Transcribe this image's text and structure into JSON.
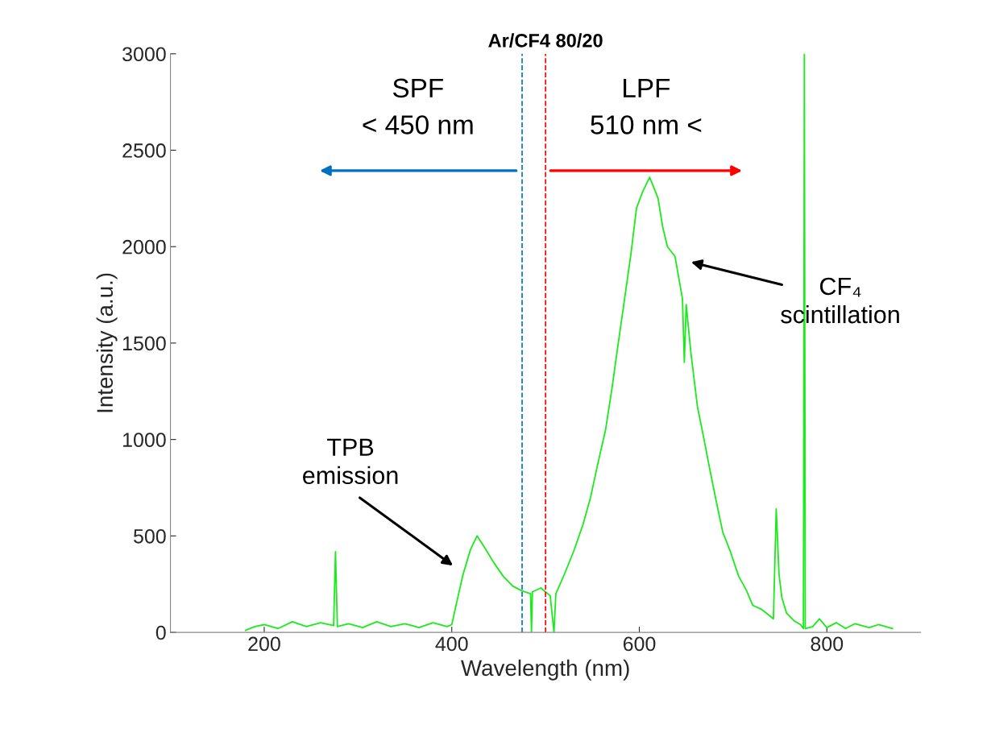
{
  "chart_data": {
    "type": "line",
    "title": "Ar/CF4 80/20",
    "xlabel": "Wavelength (nm)",
    "ylabel": "Intensity (a.u.)",
    "xlim": [
      100,
      900
    ],
    "xticks": [
      200,
      400,
      600,
      800
    ],
    "ylim": [
      0,
      3000
    ],
    "yticks": [
      0,
      500,
      1000,
      1500,
      2000,
      2500,
      3000
    ],
    "grid": false,
    "legend": false,
    "series": [
      {
        "color": "#1aeb1a",
        "x": [
          180,
          190,
          200,
          215,
          230,
          245,
          260,
          274,
          276,
          278,
          290,
          305,
          320,
          335,
          350,
          365,
          380,
          395,
          400,
          405,
          412,
          420,
          427,
          435,
          445,
          455,
          465,
          475,
          484,
          485,
          486,
          495,
          505,
          509,
          511,
          520,
          530,
          540,
          548,
          556,
          564,
          571,
          577,
          584,
          591,
          597,
          604,
          611,
          616,
          620,
          625,
          630,
          638,
          646,
          648,
          650,
          655,
          662,
          669,
          675,
          682,
          689,
          697,
          706,
          714,
          721,
          730,
          738,
          743,
          746,
          749,
          752,
          757,
          765,
          772,
          775,
          776,
          777,
          785,
          792,
          800,
          810,
          820,
          830,
          845,
          855,
          870
        ],
        "values": [
          10,
          30,
          40,
          20,
          55,
          30,
          50,
          35,
          418,
          30,
          45,
          25,
          55,
          30,
          45,
          25,
          50,
          30,
          40,
          150,
          300,
          430,
          500,
          440,
          360,
          290,
          240,
          215,
          200,
          0,
          210,
          230,
          190,
          0,
          200,
          300,
          420,
          560,
          700,
          880,
          1050,
          1270,
          1480,
          1720,
          1960,
          2200,
          2290,
          2360,
          2300,
          2250,
          2100,
          2000,
          1950,
          1730,
          1400,
          1700,
          1450,
          1170,
          1000,
          850,
          680,
          520,
          420,
          290,
          220,
          140,
          120,
          90,
          70,
          640,
          300,
          180,
          100,
          60,
          40,
          20,
          3000,
          20,
          30,
          70,
          25,
          50,
          20,
          45,
          25,
          40,
          20
        ]
      }
    ],
    "ref_lines": [
      {
        "axis": "x",
        "value": 475,
        "color": "#0072bd",
        "line_style": "dashed"
      },
      {
        "axis": "x",
        "value": 500,
        "color": "#ff0000",
        "line_style": "dashed"
      }
    ],
    "annotations": [
      "SPF\n< 450 nm",
      "LPF\n510 nm <",
      "TPB\nemission",
      "CF₄\nscintillation"
    ]
  }
}
